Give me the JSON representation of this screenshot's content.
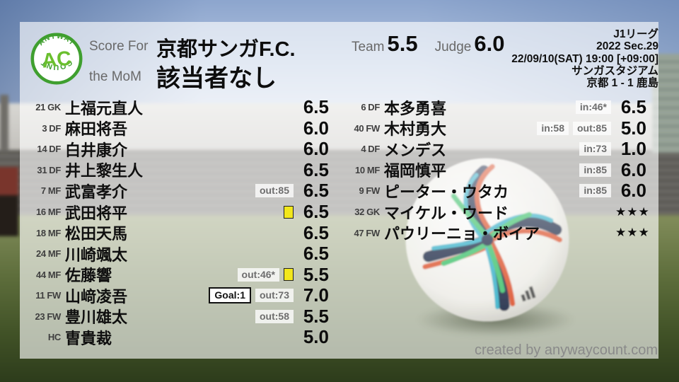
{
  "header": {
    "logo": {
      "arc_top": "ANYWAY",
      "center": "AC",
      "arc_bottom": "COUNT"
    },
    "score_for_label": "Score For",
    "team_name": "京都サンガF.C.",
    "mom_label": "the MoM",
    "mom_value": "該当者なし",
    "team_score_label": "Team",
    "team_score": "5.5",
    "judge_label": "Judge",
    "judge_score": "6.0",
    "match_info": {
      "league": "J1リーグ",
      "season": "2022 Sec.29",
      "datetime": "22/09/10(SAT) 19:00 [+09:00]",
      "venue": "サンガスタジアム",
      "result": "京都 1 - 1 鹿島"
    }
  },
  "left_column": [
    {
      "num": "21",
      "pos": "GK",
      "name": "上福元直人",
      "rating": "6.5"
    },
    {
      "num": "3",
      "pos": "DF",
      "name": "麻田将吾",
      "rating": "6.0"
    },
    {
      "num": "14",
      "pos": "DF",
      "name": "白井康介",
      "rating": "6.0"
    },
    {
      "num": "31",
      "pos": "DF",
      "name": "井上黎生人",
      "rating": "6.5"
    },
    {
      "num": "7",
      "pos": "MF",
      "name": "武富孝介",
      "badges": [
        {
          "type": "sub",
          "label": "out:85"
        }
      ],
      "rating": "6.5"
    },
    {
      "num": "16",
      "pos": "MF",
      "name": "武田将平",
      "yellow_card": true,
      "rating": "6.5"
    },
    {
      "num": "18",
      "pos": "MF",
      "name": "松田天馬",
      "rating": "6.5"
    },
    {
      "num": "24",
      "pos": "MF",
      "name": "川崎颯太",
      "rating": "6.5"
    },
    {
      "num": "44",
      "pos": "MF",
      "name": "佐藤響",
      "badges": [
        {
          "type": "sub",
          "label": "out:46*"
        }
      ],
      "yellow_card": true,
      "rating": "5.5"
    },
    {
      "num": "11",
      "pos": "FW",
      "name": "山﨑凌吾",
      "badges": [
        {
          "type": "goal",
          "label": "Goal:1"
        },
        {
          "type": "sub",
          "label": "out:73"
        }
      ],
      "rating": "7.0"
    },
    {
      "num": "23",
      "pos": "FW",
      "name": "豊川雄太",
      "badges": [
        {
          "type": "sub",
          "label": "out:58"
        }
      ],
      "rating": "5.5"
    },
    {
      "num": "",
      "pos": "HC",
      "name": "曺貴裁",
      "rating": "5.0"
    }
  ],
  "right_column": [
    {
      "num": "6",
      "pos": "DF",
      "name": "本多勇喜",
      "badges": [
        {
          "type": "sub",
          "label": "in:46*"
        }
      ],
      "rating": "6.5"
    },
    {
      "num": "40",
      "pos": "FW",
      "name": "木村勇大",
      "badges": [
        {
          "type": "sub",
          "label": "in:58"
        },
        {
          "type": "sub",
          "label": "out:85"
        }
      ],
      "rating": "5.0"
    },
    {
      "num": "4",
      "pos": "DF",
      "name": "メンデス",
      "badges": [
        {
          "type": "sub",
          "label": "in:73"
        }
      ],
      "rating": "1.0"
    },
    {
      "num": "10",
      "pos": "MF",
      "name": "福岡慎平",
      "badges": [
        {
          "type": "sub",
          "label": "in:85"
        }
      ],
      "rating": "6.0"
    },
    {
      "num": "9",
      "pos": "FW",
      "name": "ピーター・ウタカ",
      "badges": [
        {
          "type": "sub",
          "label": "in:85"
        }
      ],
      "rating": "6.0"
    },
    {
      "num": "32",
      "pos": "GK",
      "name": "マイケル・ウード",
      "rating": "★★★",
      "is_stars": true
    },
    {
      "num": "47",
      "pos": "FW",
      "name": "パウリーニョ・ボイア",
      "rating": "★★★",
      "is_stars": true
    }
  ],
  "footer": {
    "credit": "created by anywaycount.com"
  },
  "colors": {
    "logo_green_ring": "#3f9f2f",
    "logo_green_text": "#6abf2e",
    "yellow_card": "#f2e71c",
    "badge_text": "#6e6e6e",
    "panel_overlay": "rgba(255,255,255,0.63)"
  }
}
